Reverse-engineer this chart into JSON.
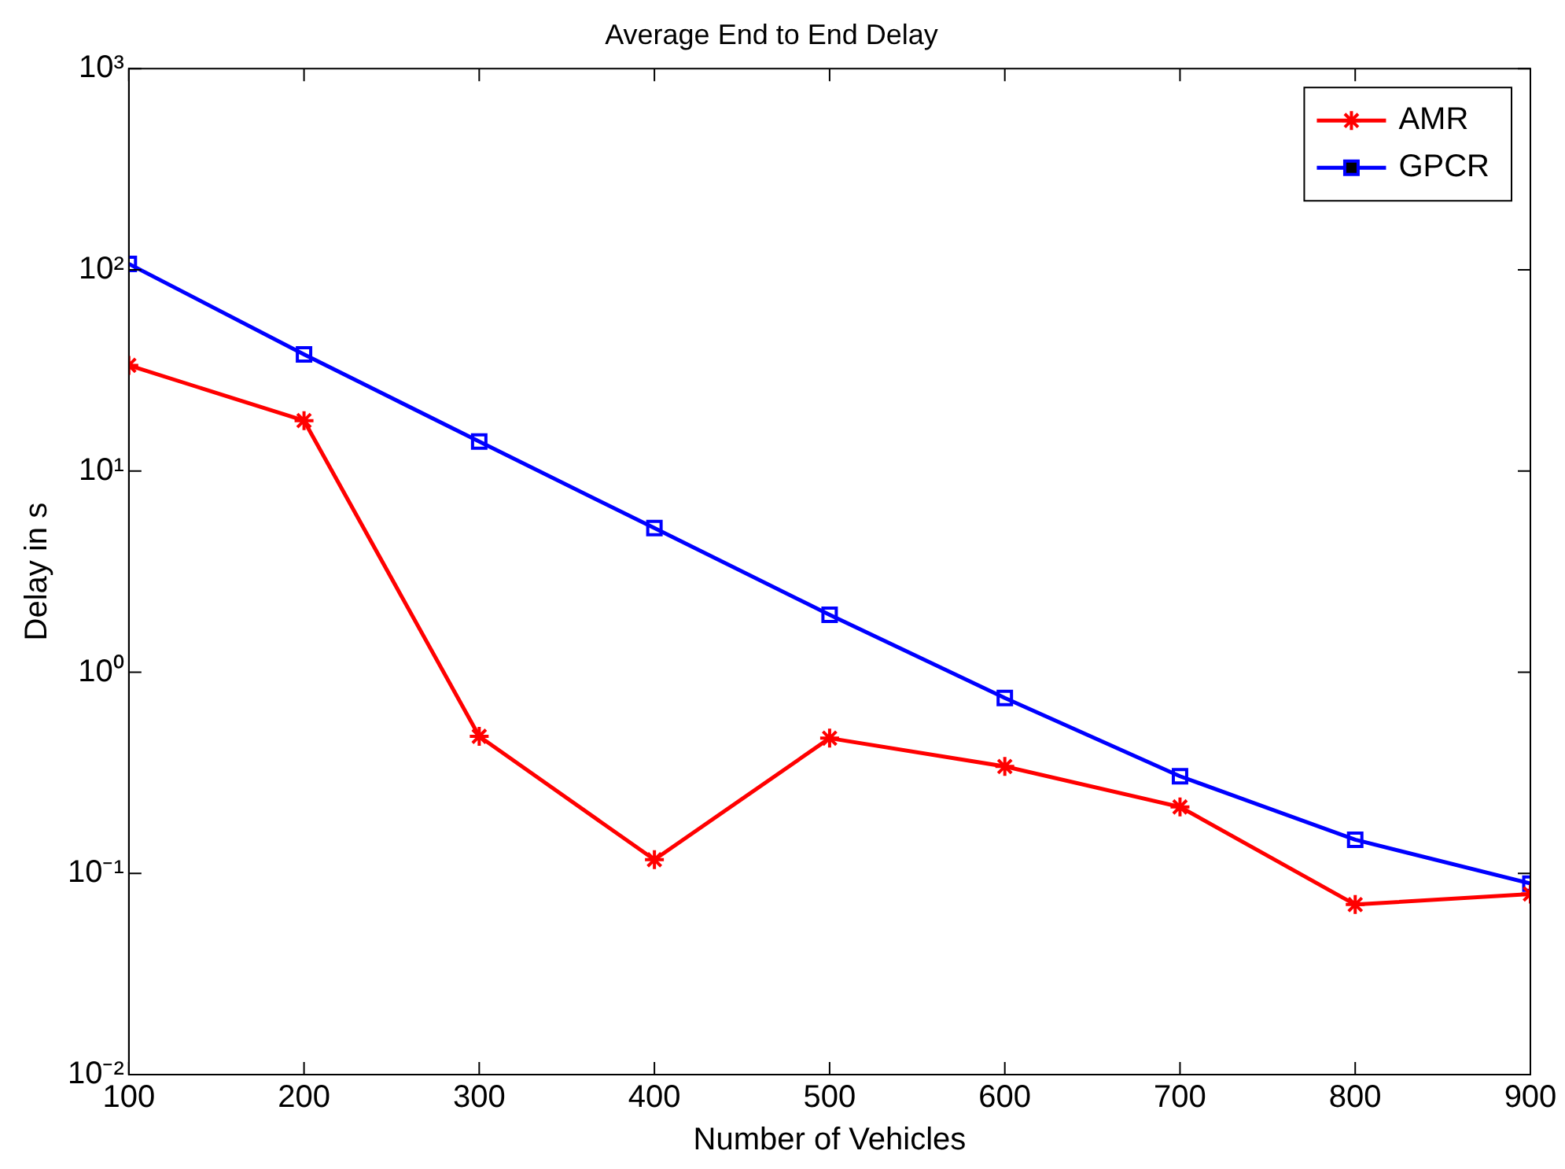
{
  "chart_data": {
    "type": "line",
    "title": "Average End to End Delay",
    "xlabel": "Number of Vehicles",
    "ylabel": "Delay in s",
    "x": [
      100,
      200,
      300,
      400,
      500,
      600,
      700,
      800,
      900
    ],
    "series": [
      {
        "name": "AMR",
        "color": "#ff0000",
        "marker": "cross",
        "values": [
          33.5,
          17.8,
          0.48,
          0.117,
          0.47,
          0.34,
          0.214,
          0.07,
          0.079
        ]
      },
      {
        "name": "GPCR",
        "color": "#0000ff",
        "marker": "square",
        "values": [
          107,
          38,
          14,
          5.2,
          1.93,
          0.745,
          0.304,
          0.147,
          0.089
        ]
      }
    ],
    "xlim": [
      100,
      900
    ],
    "xticks": [
      100,
      200,
      300,
      400,
      500,
      600,
      700,
      800,
      900
    ],
    "ylim": [
      0.01,
      1000
    ],
    "yticks": [
      {
        "value": 0.01,
        "label": "10⁻²"
      },
      {
        "value": 0.1,
        "label": "10⁻¹"
      },
      {
        "value": 1,
        "label": "10⁰"
      },
      {
        "value": 10,
        "label": "10¹"
      },
      {
        "value": 100,
        "label": "10²"
      },
      {
        "value": 1000,
        "label": "10³"
      }
    ],
    "log": "y",
    "grid": false,
    "legend": "top right",
    "line_style": "solid"
  }
}
